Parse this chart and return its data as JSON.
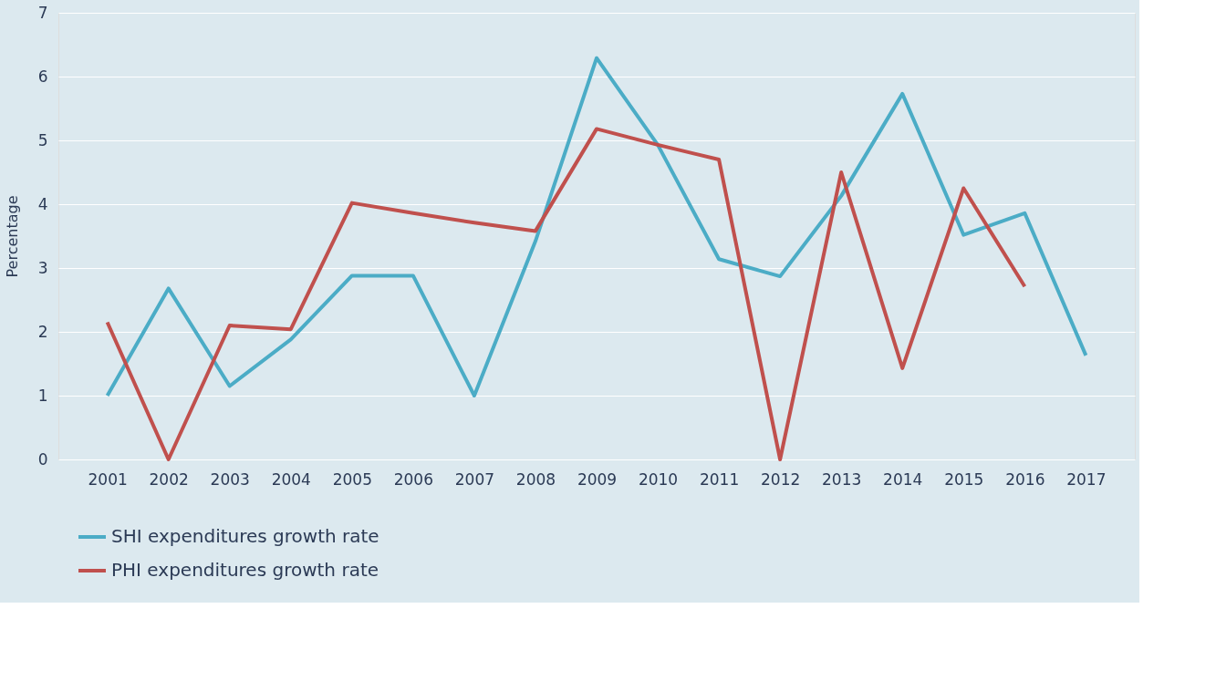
{
  "chart_data": {
    "type": "line",
    "ylabel": "Percentage",
    "categories": [
      "2001",
      "2002",
      "2003",
      "2004",
      "2005",
      "2006",
      "2007",
      "2008",
      "2009",
      "2010",
      "2011",
      "2012",
      "2013",
      "2014",
      "2015",
      "2016",
      "2017"
    ],
    "series": [
      {
        "name": "SHI expenditures growth rate",
        "color": "#4bacc6",
        "values": [
          1.0,
          2.68,
          1.15,
          1.88,
          2.88,
          2.88,
          1.0,
          3.42,
          6.29,
          4.93,
          3.14,
          2.87,
          4.13,
          5.73,
          3.52,
          3.86,
          1.63
        ]
      },
      {
        "name": "PHI expenditures growth rate",
        "color": "#c0504d",
        "values": [
          2.15,
          0.0,
          2.1,
          2.04,
          4.02,
          3.86,
          3.71,
          3.58,
          5.18,
          4.93,
          4.7,
          0.0,
          4.5,
          1.43,
          4.25,
          2.71,
          null
        ]
      }
    ],
    "ylim": [
      0,
      7
    ],
    "yticks": [
      0,
      1,
      2,
      3,
      4,
      5,
      6,
      7
    ],
    "grid": "y",
    "legend": "bottom left",
    "marker": "none",
    "line_style": "solid"
  }
}
